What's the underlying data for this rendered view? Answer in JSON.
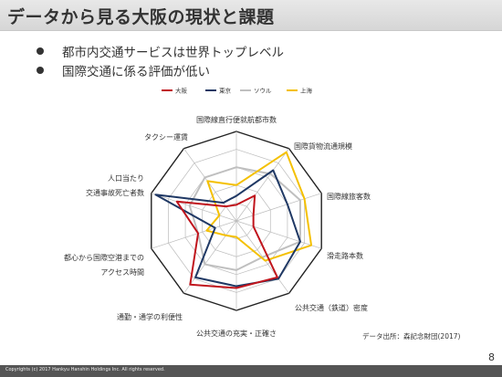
{
  "slide": {
    "title": "データから見る大阪の現状と課題",
    "bullets": [
      "都市内交通サービスは世界トップレベル",
      "国際交通に係る評価が低い"
    ],
    "source": "データ出所：森記念財団(2017)",
    "copyright": "Copyrights (c) 2017 Hankyu Hanshin Holdings Inc. All rights reserved.",
    "page_number": "8"
  },
  "chart_data": {
    "type": "radar",
    "title": "",
    "axes": [
      "国際線直行便就航都市数",
      "国際貨物流通規模",
      "国際線旅客数",
      "滑走路本数",
      "公共交通（鉄道）密度",
      "公共交通の充実・正確さ",
      "通勤・通学の利便性",
      "都心から国際空港までの\nアクセス時間",
      "人口当たり\n交通事故死亡者数",
      "タクシー運賃"
    ],
    "max": 100,
    "rings": 5,
    "legend_position": "top",
    "series": [
      {
        "name": "大阪",
        "color": "#c0141c",
        "values": [
          18,
          35,
          20,
          20,
          78,
          75,
          88,
          45,
          70,
          20
        ]
      },
      {
        "name": "東京",
        "color": "#1f3864",
        "values": [
          28,
          70,
          60,
          75,
          80,
          73,
          78,
          25,
          95,
          25
        ]
      },
      {
        "name": "ソウル",
        "color": "#bfbfbf",
        "values": [
          60,
          65,
          75,
          75,
          50,
          55,
          60,
          45,
          55,
          60
        ]
      },
      {
        "name": "上海",
        "color": "#f4c000",
        "values": [
          40,
          95,
          80,
          88,
          55,
          18,
          20,
          35,
          20,
          55
        ]
      }
    ]
  }
}
